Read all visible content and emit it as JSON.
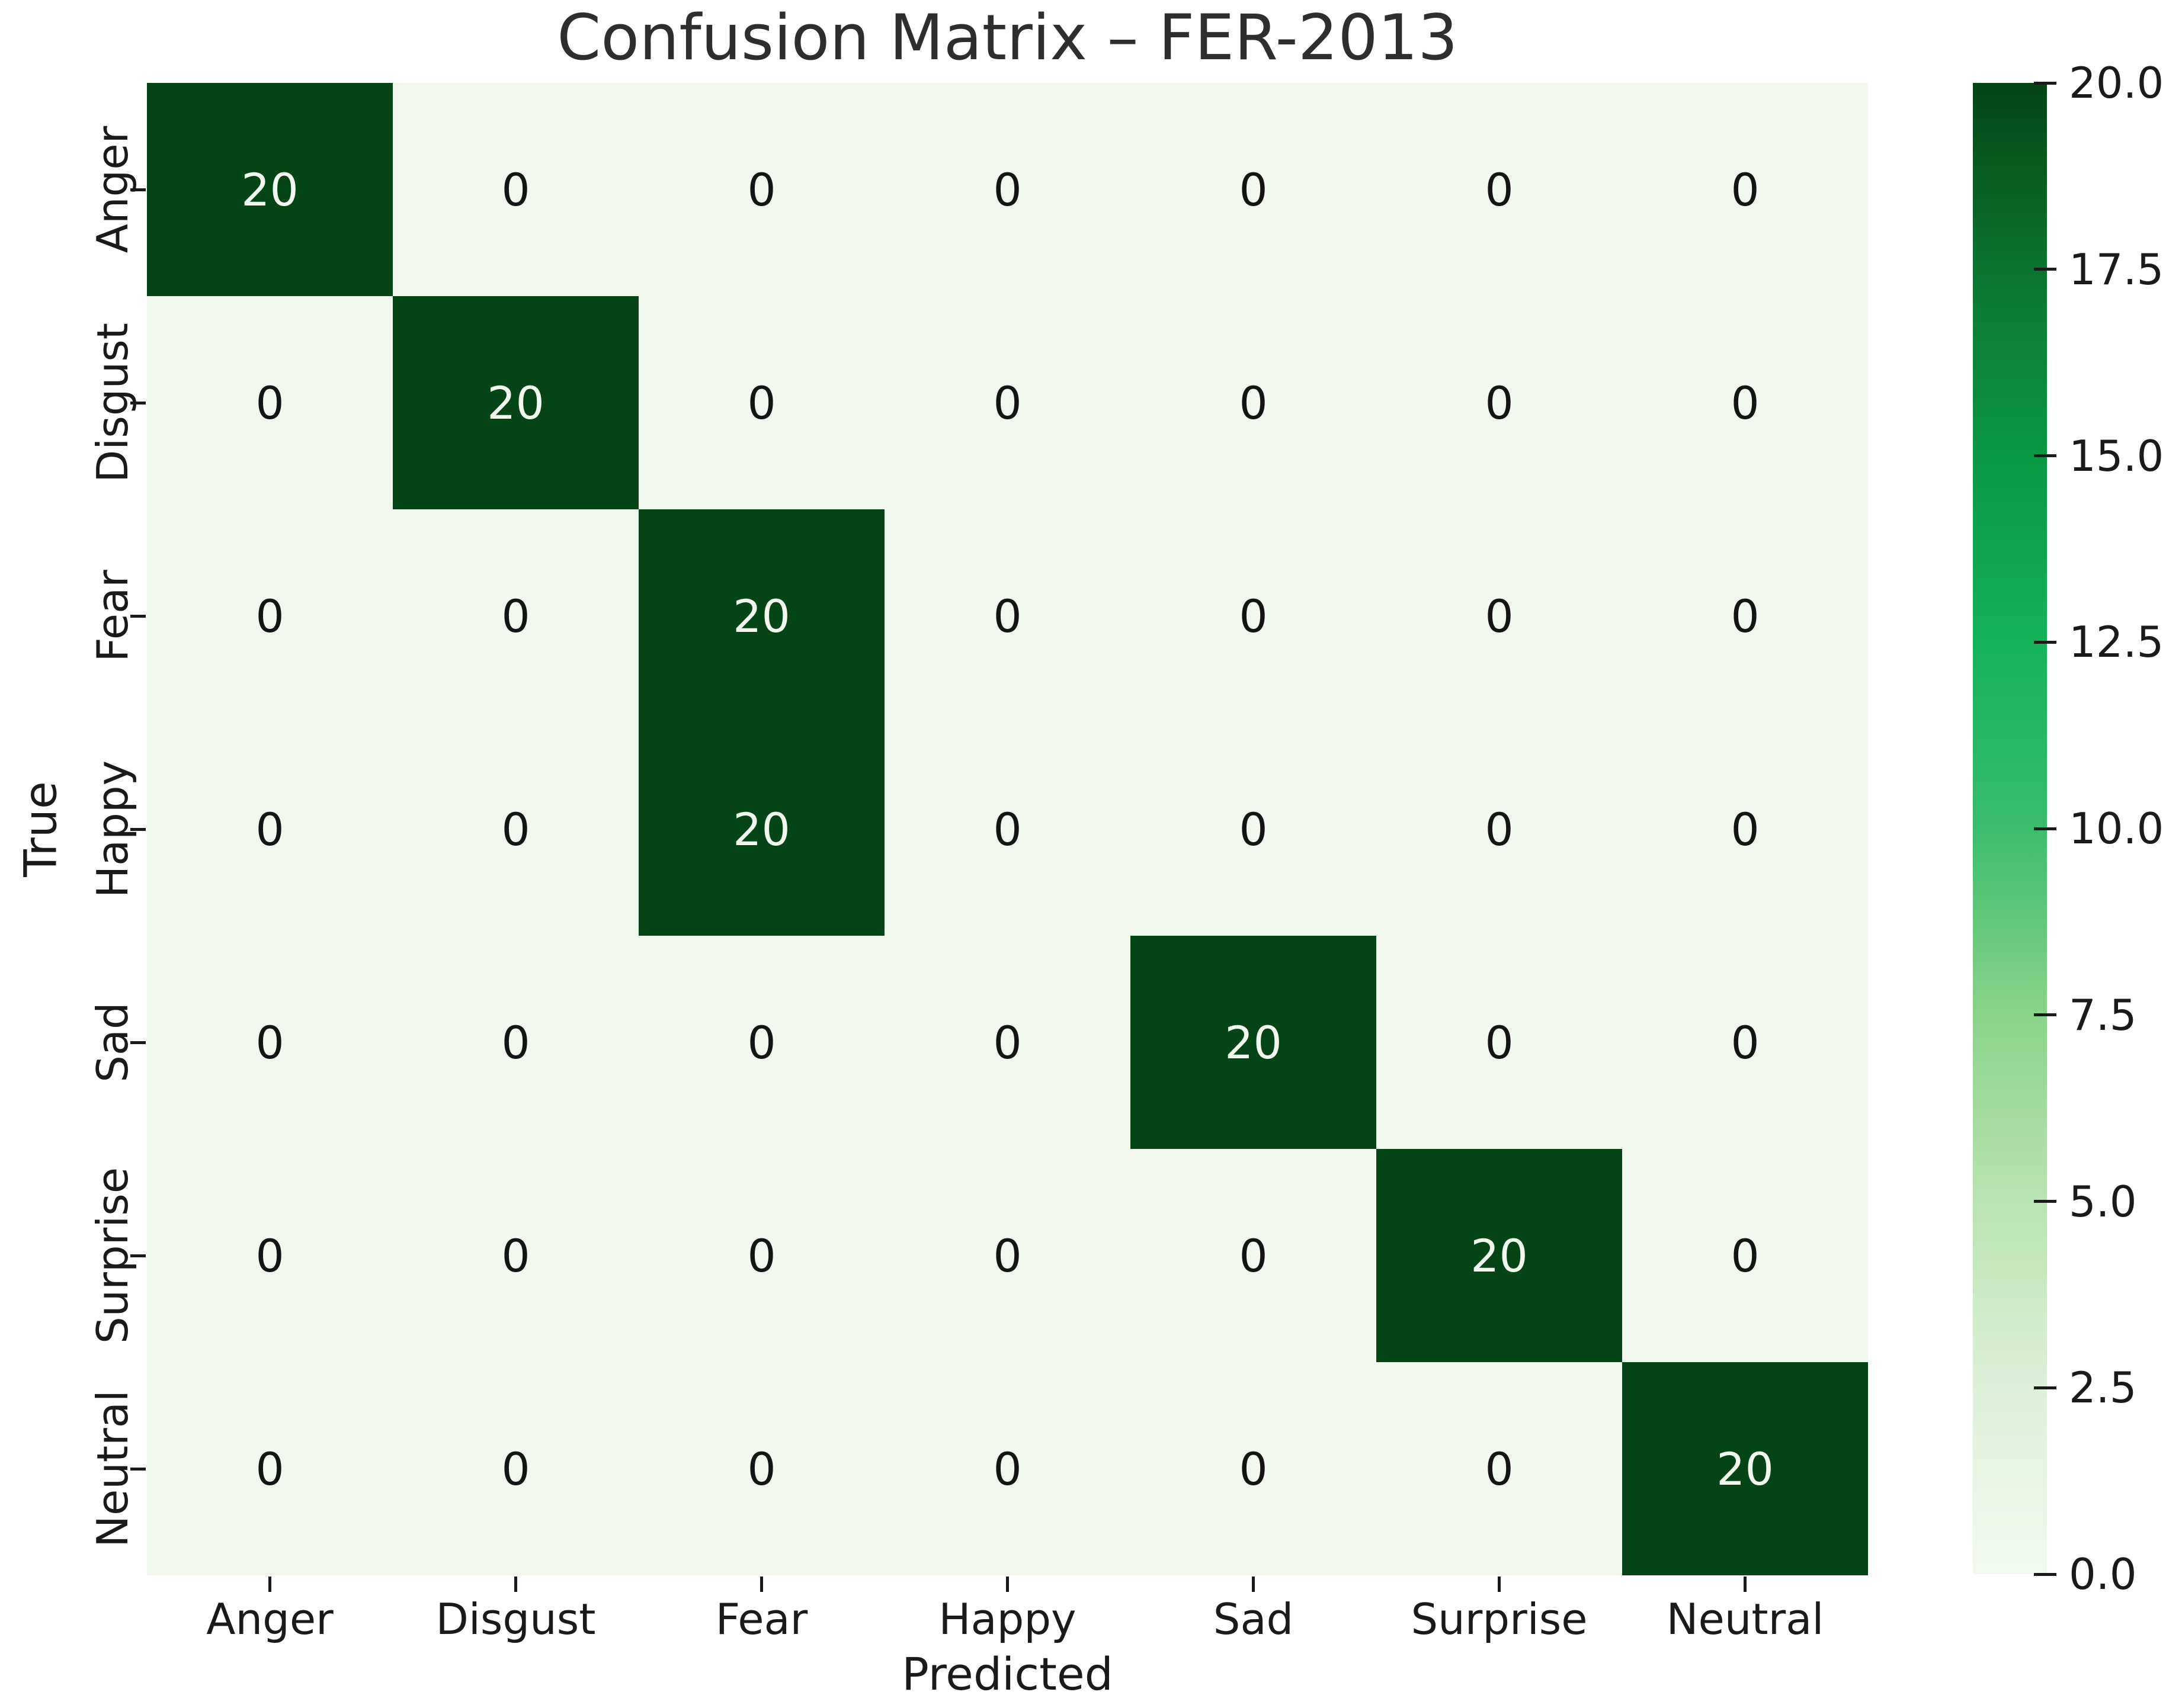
{
  "title": "Confusion Matrix – FER-2013",
  "chart_data": {
    "type": "heatmap",
    "title": "Confusion Matrix – FER-2013",
    "xlabel": "Predicted",
    "ylabel": "True",
    "x_categories": [
      "Anger",
      "Disgust",
      "Fear",
      "Happy",
      "Sad",
      "Surprise",
      "Neutral"
    ],
    "y_categories": [
      "Anger",
      "Disgust",
      "Fear",
      "Happy",
      "Sad",
      "Surprise",
      "Neutral"
    ],
    "rows": [
      [
        20,
        0,
        0,
        0,
        0,
        0,
        0
      ],
      [
        0,
        20,
        0,
        0,
        0,
        0,
        0
      ],
      [
        0,
        0,
        20,
        0,
        0,
        0,
        0
      ],
      [
        0,
        0,
        20,
        0,
        0,
        0,
        0
      ],
      [
        0,
        0,
        0,
        0,
        20,
        0,
        0
      ],
      [
        0,
        0,
        0,
        0,
        0,
        20,
        0
      ],
      [
        0,
        0,
        0,
        0,
        0,
        0,
        20
      ]
    ],
    "vmin": 0,
    "vmax": 20,
    "colorbar_tick_labels": [
      "20.0",
      "17.5",
      "15.0",
      "12.5",
      "10.0",
      "7.5",
      "5.0",
      "2.5",
      "0.0"
    ],
    "grid": false,
    "legend_position": "right-colorbar"
  },
  "colors": {
    "figure_bg": "#ffffff",
    "cell_max": "#054414",
    "cell_min": "#f1f9ee",
    "annot_on_dark": "#f2f8f0",
    "annot_on_light": "#141414",
    "title_text": "#2e2e2e",
    "tick_text": "#1a1a1a",
    "colorbar_stops_bottom_to_top": [
      "#f2faef",
      "#ddf0d8",
      "#b9e4b0",
      "#8bd389",
      "#3abd6b",
      "#15b259",
      "#0b9843",
      "#0b7530",
      "#054414"
    ]
  }
}
